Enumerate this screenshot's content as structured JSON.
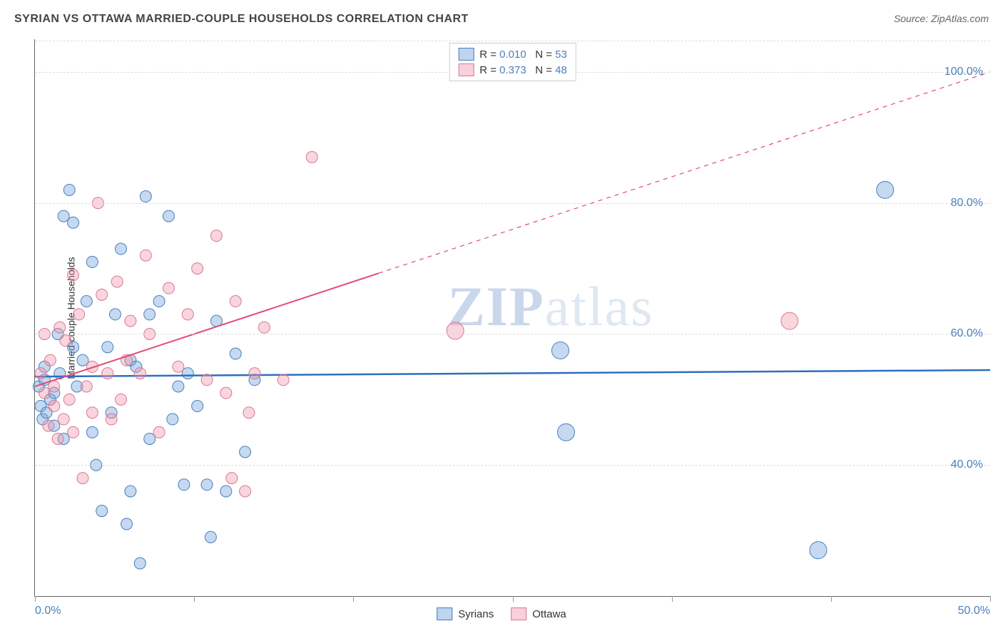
{
  "title": "SYRIAN VS OTTAWA MARRIED-COUPLE HOUSEHOLDS CORRELATION CHART",
  "source": "Source: ZipAtlas.com",
  "ylabel": "Married-couple Households",
  "watermark_zip": "ZIP",
  "watermark_atlas": "atlas",
  "chart": {
    "type": "scatter",
    "x_domain": [
      0,
      50
    ],
    "y_domain": [
      20,
      105
    ],
    "x_ticks": [
      0,
      8.33,
      16.67,
      25,
      33.33,
      41.67,
      50
    ],
    "x_tick_labels": {
      "0": "0.0%",
      "50": "50.0%"
    },
    "y_gridlines": [
      40,
      60,
      80,
      100
    ],
    "y_tick_labels": {
      "40": "40.0%",
      "60": "60.0%",
      "80": "80.0%",
      "100": "100.0%"
    },
    "grid_color": "#dddddd",
    "axis_color": "#666666",
    "background": "#ffffff",
    "point_radius": 8,
    "point_radius_large": 12,
    "series": [
      {
        "name": "Syrians",
        "fill": "rgba(110,160,220,0.40)",
        "stroke": "#4a7ebb",
        "R": "0.010",
        "N": "53",
        "trend": {
          "x1": 0,
          "y1": 53.5,
          "x2": 50,
          "y2": 54.5,
          "stroke": "#2e6fbe",
          "width": 2.5,
          "dash_after_x": null
        },
        "points": [
          [
            0.2,
            52
          ],
          [
            0.3,
            49
          ],
          [
            0.4,
            47
          ],
          [
            0.5,
            53
          ],
          [
            0.5,
            55
          ],
          [
            0.6,
            48
          ],
          [
            0.8,
            50
          ],
          [
            1.0,
            46
          ],
          [
            1.0,
            51
          ],
          [
            1.2,
            60
          ],
          [
            1.3,
            54
          ],
          [
            1.5,
            78
          ],
          [
            1.5,
            44
          ],
          [
            1.8,
            82
          ],
          [
            2.0,
            77
          ],
          [
            2.0,
            58
          ],
          [
            2.2,
            52
          ],
          [
            2.5,
            56
          ],
          [
            2.7,
            65
          ],
          [
            3.0,
            71
          ],
          [
            3.0,
            45
          ],
          [
            3.2,
            40
          ],
          [
            3.5,
            33
          ],
          [
            3.8,
            58
          ],
          [
            4.0,
            48
          ],
          [
            4.2,
            63
          ],
          [
            4.5,
            73
          ],
          [
            4.8,
            31
          ],
          [
            5.0,
            36
          ],
          [
            5.0,
            56
          ],
          [
            5.3,
            55
          ],
          [
            5.5,
            25
          ],
          [
            5.8,
            81
          ],
          [
            6.0,
            44
          ],
          [
            6.0,
            63
          ],
          [
            6.5,
            65
          ],
          [
            7.0,
            78
          ],
          [
            7.2,
            47
          ],
          [
            7.5,
            52
          ],
          [
            7.8,
            37
          ],
          [
            8.0,
            54
          ],
          [
            8.5,
            49
          ],
          [
            9.0,
            37
          ],
          [
            9.2,
            29
          ],
          [
            9.5,
            62
          ],
          [
            10.0,
            36
          ],
          [
            10.5,
            57
          ],
          [
            11.0,
            42
          ],
          [
            11.5,
            53
          ],
          [
            27.5,
            57.5
          ],
          [
            27.8,
            45
          ],
          [
            41.0,
            27
          ],
          [
            44.5,
            82
          ]
        ]
      },
      {
        "name": "Ottawa",
        "fill": "rgba(240,150,170,0.40)",
        "stroke": "#d97890",
        "R": "0.373",
        "N": "48",
        "trend": {
          "x1": 0,
          "y1": 52,
          "x2": 50,
          "y2": 100,
          "stroke": "#e24a74",
          "width": 2,
          "dash_after_x": 18
        },
        "points": [
          [
            0.3,
            54
          ],
          [
            0.5,
            51
          ],
          [
            0.5,
            60
          ],
          [
            0.7,
            46
          ],
          [
            0.8,
            56
          ],
          [
            1.0,
            49
          ],
          [
            1.0,
            52
          ],
          [
            1.2,
            44
          ],
          [
            1.3,
            61
          ],
          [
            1.5,
            47
          ],
          [
            1.6,
            59
          ],
          [
            1.8,
            50
          ],
          [
            2.0,
            45
          ],
          [
            2.0,
            69
          ],
          [
            2.3,
            63
          ],
          [
            2.5,
            38
          ],
          [
            2.7,
            52
          ],
          [
            3.0,
            55
          ],
          [
            3.0,
            48
          ],
          [
            3.3,
            80
          ],
          [
            3.5,
            66
          ],
          [
            3.8,
            54
          ],
          [
            4.0,
            47
          ],
          [
            4.3,
            68
          ],
          [
            4.5,
            50
          ],
          [
            4.8,
            56
          ],
          [
            5.0,
            62
          ],
          [
            5.5,
            54
          ],
          [
            5.8,
            72
          ],
          [
            6.0,
            60
          ],
          [
            6.5,
            45
          ],
          [
            7.0,
            67
          ],
          [
            7.5,
            55
          ],
          [
            8.0,
            63
          ],
          [
            8.5,
            70
          ],
          [
            9.0,
            53
          ],
          [
            9.5,
            75
          ],
          [
            10.0,
            51
          ],
          [
            10.3,
            38
          ],
          [
            10.5,
            65
          ],
          [
            11.0,
            36
          ],
          [
            11.5,
            54
          ],
          [
            12.0,
            61
          ],
          [
            13.0,
            53
          ],
          [
            14.5,
            87
          ],
          [
            22.0,
            60.5
          ],
          [
            39.5,
            62
          ],
          [
            11.2,
            48
          ]
        ]
      }
    ]
  },
  "legend_top": {
    "R_label": "R =",
    "N_label": "N ="
  },
  "legend_bottom": [
    {
      "swatch": "sw-blue",
      "label": "Syrians"
    },
    {
      "swatch": "sw-pink",
      "label": "Ottawa"
    }
  ]
}
